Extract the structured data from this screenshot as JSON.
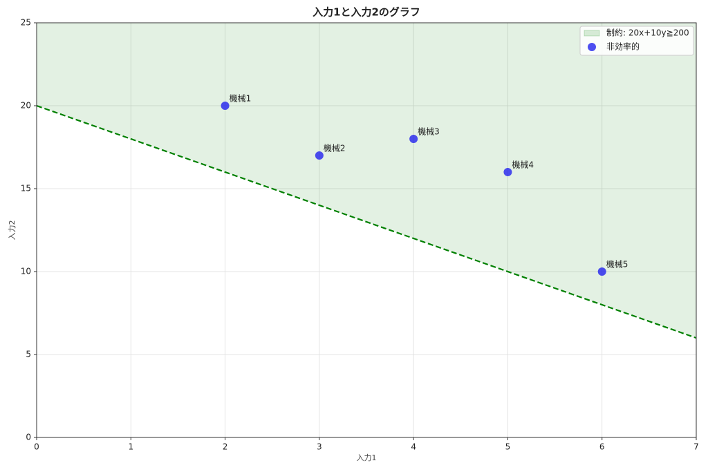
{
  "chart_data": {
    "type": "scatter",
    "title": "入力1と入力2のグラフ",
    "x_label": "入力1",
    "y_label": "入力2",
    "xlim": [
      0,
      7
    ],
    "ylim": [
      0,
      25
    ],
    "xticks": [
      0,
      1,
      2,
      3,
      4,
      5,
      6,
      7
    ],
    "yticks": [
      0,
      5,
      10,
      15,
      20,
      25
    ],
    "grid": true,
    "legend": "upper right",
    "series": [
      {
        "name": "制約: 20x+10y≧200",
        "type": "area",
        "color": "green",
        "line_style": "dashed",
        "x": [
          0,
          7
        ],
        "values": [
          20,
          6
        ]
      },
      {
        "name": "非効率的",
        "type": "scatter",
        "color": "#2222ee",
        "x": [
          2,
          3,
          4,
          5,
          6
        ],
        "values": [
          20,
          17,
          18,
          16,
          10
        ],
        "labels": [
          "機械1",
          "機械2",
          "機械3",
          "機械4",
          "機械5"
        ]
      }
    ]
  }
}
